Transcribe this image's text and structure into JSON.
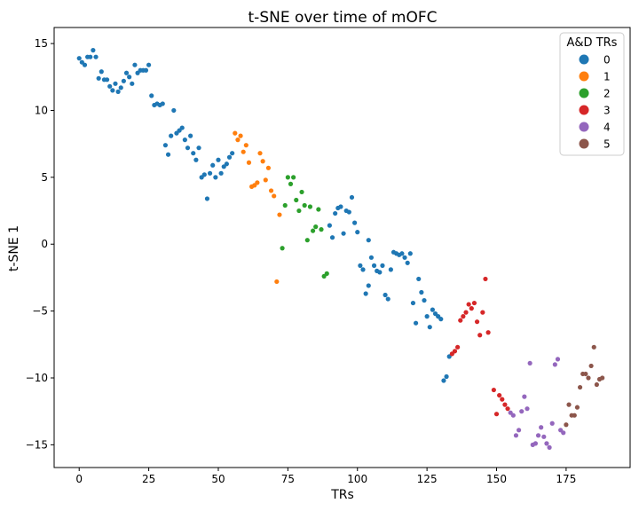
{
  "chart_data": {
    "type": "scatter",
    "title": "t-SNE over time of mOFC",
    "xlabel": "TRs",
    "ylabel": "t-SNE 1",
    "xlim": [
      -9,
      198
    ],
    "ylim": [
      -16.7,
      16.2
    ],
    "xticks": [
      0,
      25,
      50,
      75,
      100,
      125,
      150,
      175
    ],
    "yticks": [
      -15,
      -10,
      -5,
      0,
      5,
      10,
      15
    ],
    "xtick_labels": [
      "0",
      "25",
      "50",
      "75",
      "100",
      "125",
      "150",
      "175"
    ],
    "ytick_labels": [
      "−15",
      "−10",
      "−5",
      "0",
      "5",
      "10",
      "15"
    ],
    "grid": false,
    "legend": {
      "title": "A&D TRs",
      "position": "top-right"
    },
    "series": [
      {
        "name": "0",
        "color": "#1f77b4",
        "points": [
          [
            0,
            13.9
          ],
          [
            1,
            13.6
          ],
          [
            2,
            13.4
          ],
          [
            3,
            14.0
          ],
          [
            4,
            14.0
          ],
          [
            5,
            14.5
          ],
          [
            6,
            14.0
          ],
          [
            7,
            12.4
          ],
          [
            8,
            12.9
          ],
          [
            9,
            12.3
          ],
          [
            10,
            12.3
          ],
          [
            11,
            11.8
          ],
          [
            12,
            11.5
          ],
          [
            13,
            12.0
          ],
          [
            14,
            11.4
          ],
          [
            15,
            11.7
          ],
          [
            16,
            12.2
          ],
          [
            17,
            12.8
          ],
          [
            18,
            12.5
          ],
          [
            19,
            12.0
          ],
          [
            20,
            13.4
          ],
          [
            21,
            12.8
          ],
          [
            22,
            13.0
          ],
          [
            23,
            13.0
          ],
          [
            24,
            13.0
          ],
          [
            25,
            13.4
          ],
          [
            26,
            11.1
          ],
          [
            27,
            10.4
          ],
          [
            28,
            10.5
          ],
          [
            29,
            10.4
          ],
          [
            30,
            10.5
          ],
          [
            31,
            7.4
          ],
          [
            32,
            6.7
          ],
          [
            33,
            8.1
          ],
          [
            34,
            10.0
          ],
          [
            35,
            8.3
          ],
          [
            36,
            8.5
          ],
          [
            37,
            8.7
          ],
          [
            38,
            7.8
          ],
          [
            39,
            7.2
          ],
          [
            40,
            8.1
          ],
          [
            41,
            6.8
          ],
          [
            42,
            6.3
          ],
          [
            43,
            7.2
          ],
          [
            44,
            5.0
          ],
          [
            45,
            5.2
          ],
          [
            46,
            3.4
          ],
          [
            47,
            5.3
          ],
          [
            48,
            5.9
          ],
          [
            49,
            5.0
          ],
          [
            50,
            6.3
          ],
          [
            51,
            5.3
          ],
          [
            52,
            5.8
          ],
          [
            53,
            6.0
          ],
          [
            54,
            6.5
          ],
          [
            55,
            6.8
          ],
          [
            104,
            0.3
          ],
          [
            105,
            -1.0
          ],
          [
            106,
            -1.6
          ],
          [
            107,
            -2.0
          ],
          [
            108,
            -2.1
          ],
          [
            109,
            -1.6
          ],
          [
            110,
            -3.8
          ],
          [
            111,
            -4.1
          ],
          [
            112,
            -1.9
          ],
          [
            113,
            -0.6
          ],
          [
            114,
            -0.7
          ],
          [
            115,
            -0.8
          ],
          [
            116,
            -0.7
          ],
          [
            117,
            -1.0
          ],
          [
            118,
            -1.4
          ],
          [
            119,
            -0.7
          ],
          [
            120,
            -4.4
          ],
          [
            121,
            -5.9
          ],
          [
            122,
            -2.6
          ],
          [
            123,
            -3.6
          ],
          [
            124,
            -4.2
          ],
          [
            125,
            -5.4
          ],
          [
            126,
            -6.2
          ],
          [
            127,
            -4.9
          ],
          [
            128,
            -5.2
          ],
          [
            129,
            -5.4
          ],
          [
            130,
            -5.6
          ],
          [
            131,
            -10.2
          ],
          [
            132,
            -9.9
          ],
          [
            133,
            -8.4
          ]
        ]
      },
      {
        "name": "1",
        "color": "#ff7f0e",
        "points": [
          [
            56,
            8.3
          ],
          [
            57,
            7.8
          ],
          [
            58,
            8.1
          ],
          [
            59,
            6.9
          ],
          [
            60,
            7.4
          ],
          [
            61,
            6.1
          ],
          [
            62,
            4.3
          ],
          [
            63,
            4.4
          ],
          [
            64,
            4.6
          ],
          [
            65,
            6.8
          ],
          [
            66,
            6.2
          ],
          [
            67,
            4.8
          ],
          [
            68,
            5.7
          ],
          [
            69,
            4.0
          ],
          [
            70,
            3.6
          ],
          [
            71,
            -2.8
          ],
          [
            72,
            2.2
          ]
        ]
      },
      {
        "name": "2",
        "color": "#2ca02c",
        "points": [
          [
            73,
            -0.3
          ],
          [
            74,
            2.9
          ],
          [
            75,
            5.0
          ],
          [
            76,
            4.5
          ],
          [
            77,
            5.0
          ],
          [
            78,
            3.3
          ],
          [
            79,
            2.5
          ],
          [
            80,
            3.9
          ],
          [
            81,
            2.9
          ],
          [
            82,
            0.3
          ],
          [
            83,
            2.8
          ],
          [
            84,
            1.0
          ],
          [
            85,
            1.3
          ],
          [
            86,
            2.6
          ],
          [
            87,
            1.1
          ],
          [
            88,
            -2.4
          ],
          [
            89,
            -2.2
          ]
        ]
      },
      {
        "name": "0",
        "color": "#1f77b4",
        "points": [
          [
            90,
            1.4
          ],
          [
            91,
            0.5
          ],
          [
            92,
            2.3
          ],
          [
            93,
            2.7
          ],
          [
            94,
            2.8
          ],
          [
            95,
            0.8
          ],
          [
            96,
            2.5
          ],
          [
            97,
            2.4
          ],
          [
            98,
            3.5
          ],
          [
            99,
            1.6
          ],
          [
            100,
            0.9
          ],
          [
            101,
            -1.6
          ],
          [
            102,
            -1.9
          ],
          [
            103,
            -3.7
          ],
          [
            104,
            -3.1
          ]
        ]
      },
      {
        "name": "3",
        "color": "#d62728",
        "points": [
          [
            134,
            -8.2
          ],
          [
            135,
            -8.0
          ],
          [
            136,
            -7.7
          ],
          [
            137,
            -5.7
          ],
          [
            138,
            -5.4
          ],
          [
            139,
            -5.1
          ],
          [
            140,
            -4.5
          ],
          [
            141,
            -4.8
          ],
          [
            142,
            -4.4
          ],
          [
            143,
            -5.8
          ],
          [
            144,
            -6.8
          ],
          [
            145,
            -5.1
          ],
          [
            146,
            -2.6
          ],
          [
            147,
            -6.6
          ],
          [
            149,
            -10.9
          ],
          [
            150,
            -12.7
          ],
          [
            151,
            -11.3
          ],
          [
            152,
            -11.6
          ],
          [
            153,
            -12.0
          ],
          [
            154,
            -12.3
          ]
        ]
      },
      {
        "name": "4",
        "color": "#9467bd",
        "points": [
          [
            155,
            -12.6
          ],
          [
            156,
            -12.8
          ],
          [
            157,
            -14.3
          ],
          [
            158,
            -13.9
          ],
          [
            159,
            -12.5
          ],
          [
            160,
            -11.4
          ],
          [
            161,
            -12.3
          ],
          [
            162,
            -8.9
          ],
          [
            163,
            -15.0
          ],
          [
            164,
            -14.9
          ],
          [
            165,
            -14.3
          ],
          [
            166,
            -13.7
          ],
          [
            167,
            -14.4
          ],
          [
            168,
            -14.9
          ],
          [
            169,
            -15.2
          ],
          [
            170,
            -13.4
          ],
          [
            171,
            -9.0
          ],
          [
            172,
            -8.6
          ],
          [
            173,
            -13.9
          ],
          [
            174,
            -14.1
          ]
        ]
      },
      {
        "name": "5",
        "color": "#8c564b",
        "points": [
          [
            175,
            -13.5
          ],
          [
            176,
            -12.0
          ],
          [
            177,
            -12.8
          ],
          [
            178,
            -12.8
          ],
          [
            179,
            -12.2
          ],
          [
            180,
            -10.7
          ],
          [
            181,
            -9.7
          ],
          [
            182,
            -9.7
          ],
          [
            183,
            -10.0
          ],
          [
            184,
            -9.1
          ],
          [
            185,
            -7.7
          ],
          [
            186,
            -10.5
          ],
          [
            187,
            -10.1
          ],
          [
            188,
            -10.0
          ]
        ]
      }
    ],
    "legend_entries": [
      {
        "label": "0",
        "color": "#1f77b4"
      },
      {
        "label": "1",
        "color": "#ff7f0e"
      },
      {
        "label": "2",
        "color": "#2ca02c"
      },
      {
        "label": "3",
        "color": "#d62728"
      },
      {
        "label": "4",
        "color": "#9467bd"
      },
      {
        "label": "5",
        "color": "#8c564b"
      }
    ]
  }
}
